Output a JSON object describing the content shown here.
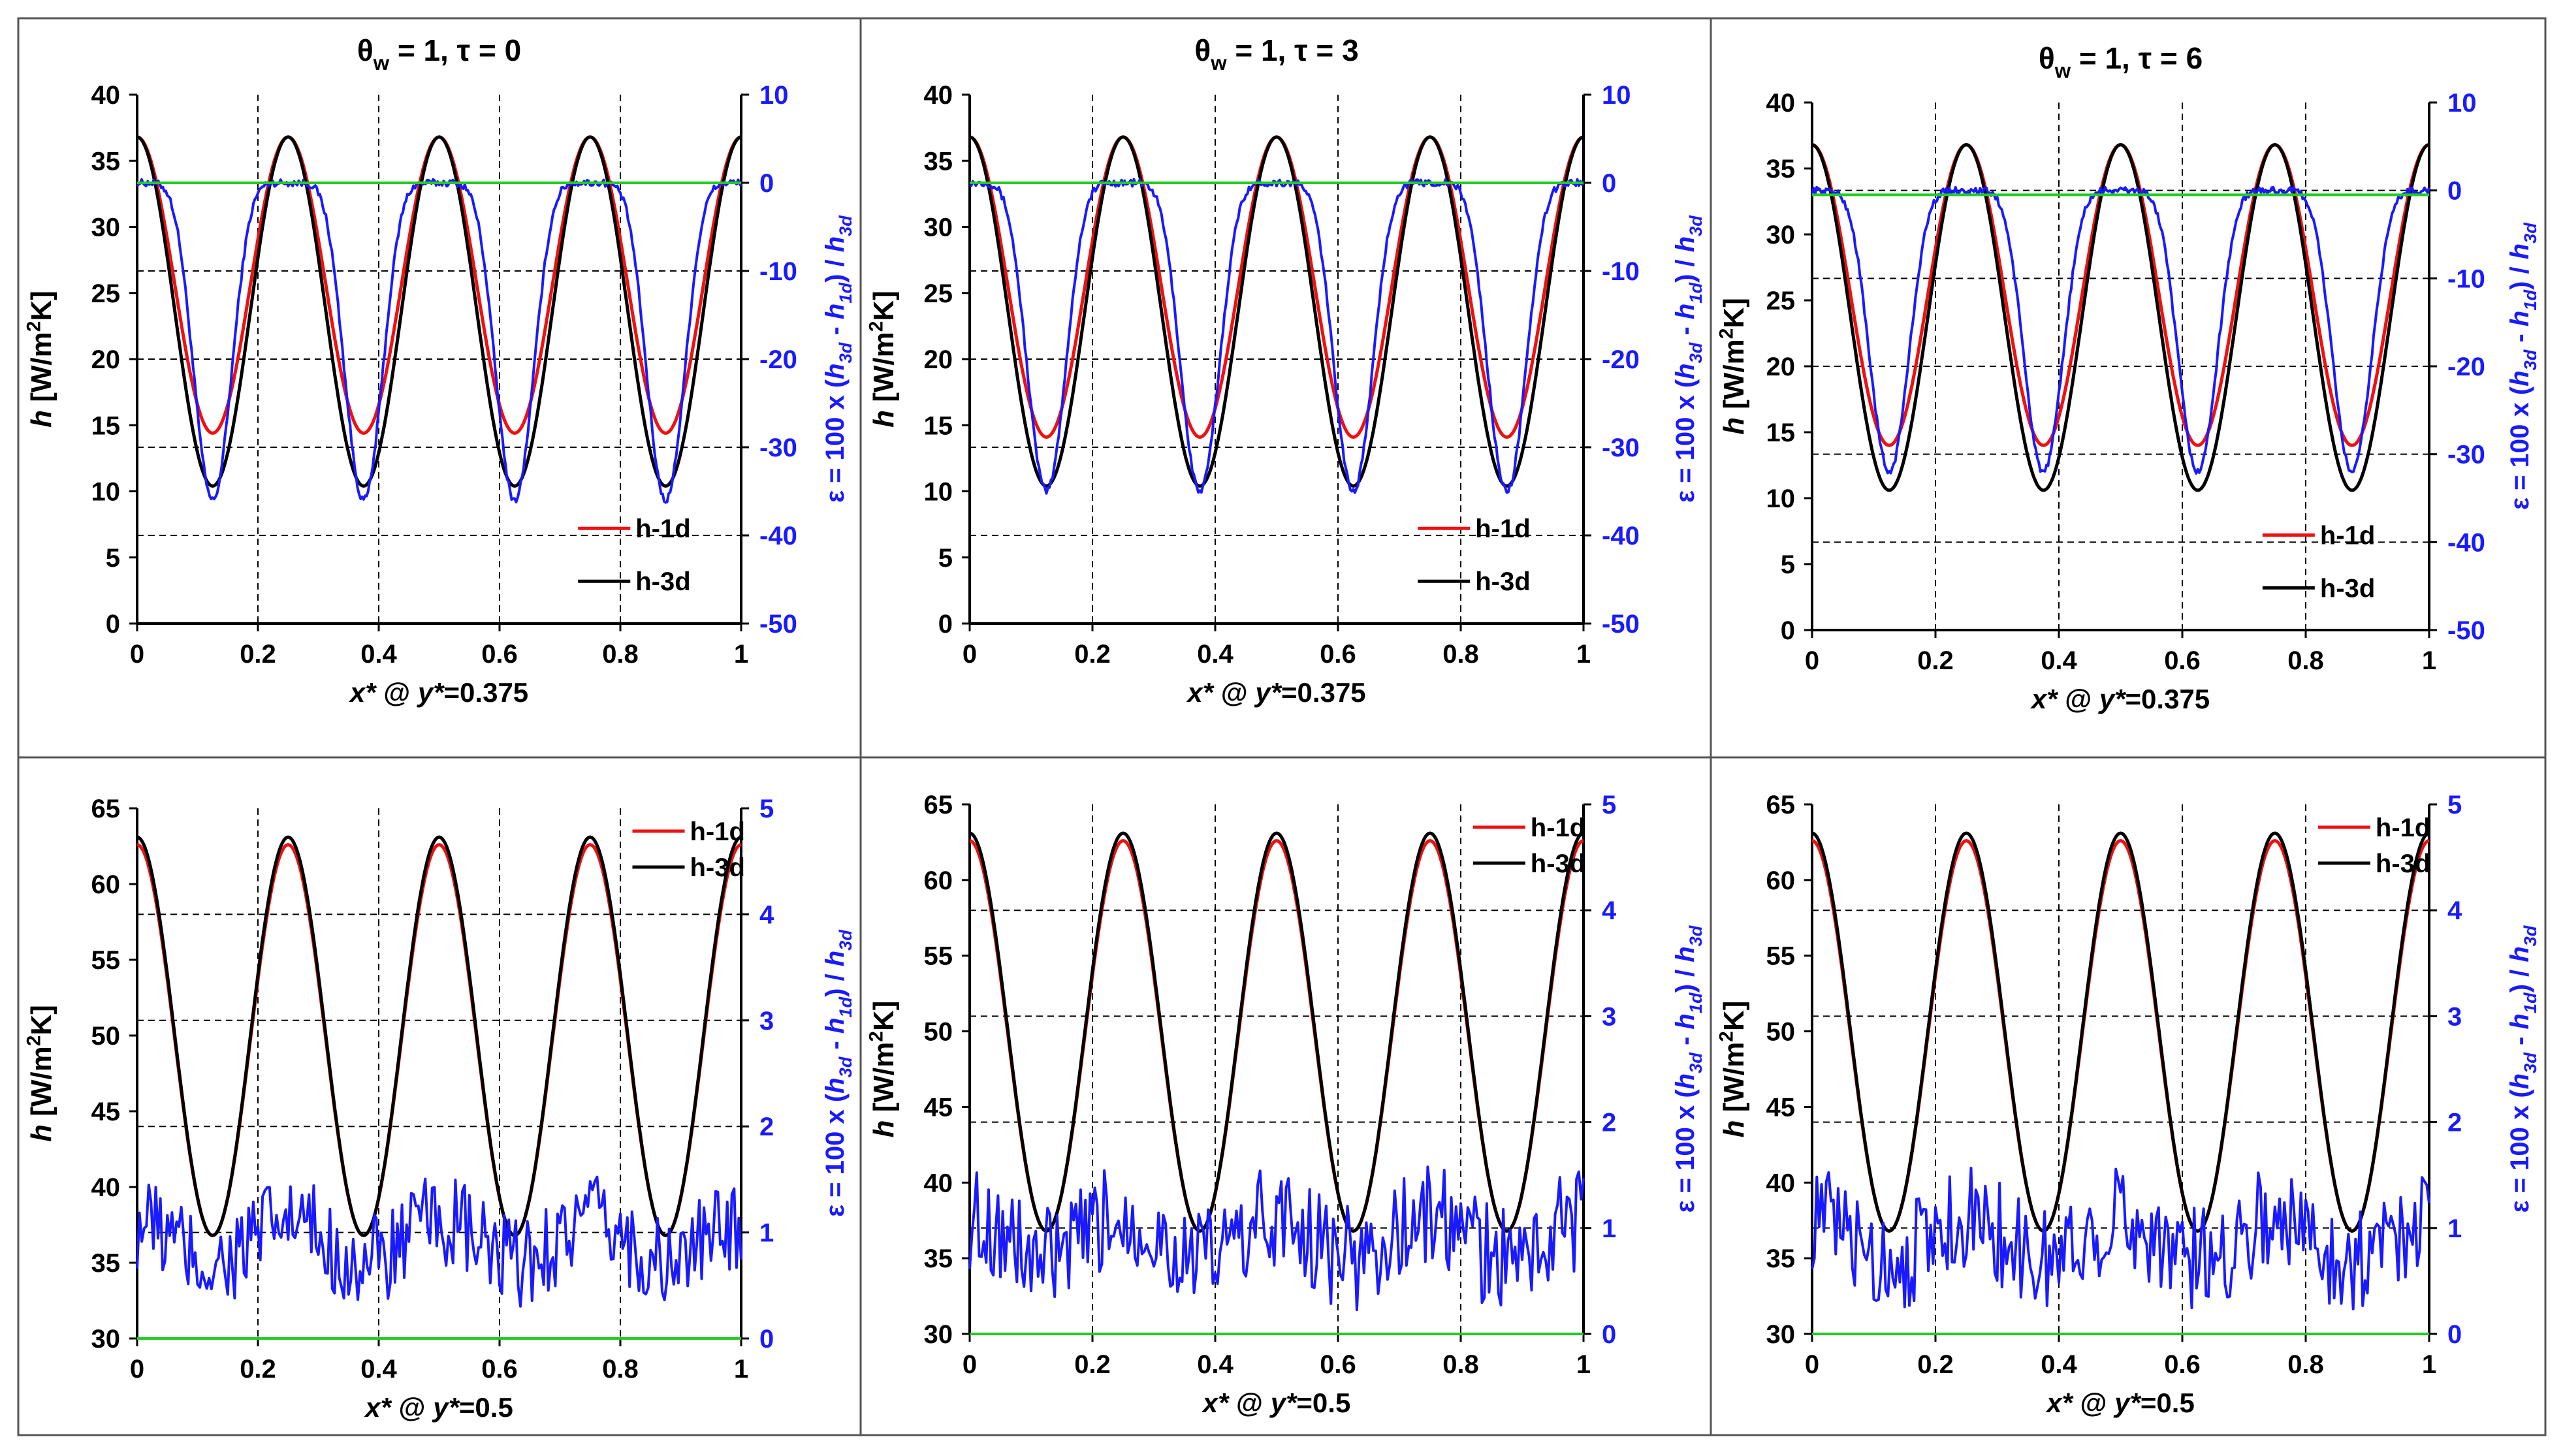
{
  "figure": {
    "line_colors": {
      "h1d": "#ee1111",
      "h3d": "#000000",
      "eps": "#1a1aff",
      "zero": "#22cc22"
    }
  },
  "chart_data": [
    {
      "type": "line",
      "title": "θw = 1, τ = 0",
      "xlabel": "x* @ y*=0.375",
      "ylabel": "h [W/m²K]",
      "y2label": "ε = 100 x (h3d - h1d) / h3d",
      "xlim": [
        0,
        1
      ],
      "ylim": [
        0,
        40
      ],
      "y2lim": [
        -50,
        10
      ],
      "xticks": [
        "0",
        "0.2",
        "0.4",
        "0.6",
        "0.8",
        "1"
      ],
      "yticks": [
        "0",
        "5",
        "10",
        "15",
        "20",
        "25",
        "30",
        "35",
        "40"
      ],
      "y2ticks": [
        "-50",
        "-40",
        "-30",
        "-20",
        "-10",
        "0",
        "10"
      ],
      "legend": [
        "h-1d",
        "h-3d"
      ],
      "legend_position": "lower-right",
      "series": [
        {
          "name": "h-1d",
          "axis": "left",
          "model": "cos",
          "max": 36.8,
          "min": 14.4
        },
        {
          "name": "h-3d",
          "axis": "left",
          "model": "cos",
          "max": 36.8,
          "min": 10.4
        },
        {
          "name": "ε",
          "axis": "right",
          "model": "error",
          "max": 0,
          "min": -36,
          "noise": 0.4
        },
        {
          "name": "zero",
          "axis": "right",
          "model": "const",
          "value": 0
        }
      ]
    },
    {
      "type": "line",
      "title": "θw = 1, τ = 3",
      "xlabel": "x* @ y*=0.375",
      "ylabel": "h [W/m²K]",
      "y2label": "ε = 100 x (h3d - h1d) / h3d",
      "xlim": [
        0,
        1
      ],
      "ylim": [
        0,
        40
      ],
      "y2lim": [
        -50,
        10
      ],
      "xticks": [
        "0",
        "0.2",
        "0.4",
        "0.6",
        "0.8",
        "1"
      ],
      "yticks": [
        "0",
        "5",
        "10",
        "15",
        "20",
        "25",
        "30",
        "35",
        "40"
      ],
      "y2ticks": [
        "-50",
        "-40",
        "-30",
        "-20",
        "-10",
        "0",
        "10"
      ],
      "legend": [
        "h-1d",
        "h-3d"
      ],
      "legend_position": "lower-right",
      "series": [
        {
          "name": "h-1d",
          "axis": "left",
          "model": "cos",
          "max": 36.8,
          "min": 14.1
        },
        {
          "name": "h-3d",
          "axis": "left",
          "model": "cos",
          "max": 36.8,
          "min": 10.4
        },
        {
          "name": "ε",
          "axis": "right",
          "model": "error",
          "max": 0,
          "min": -35,
          "noise": 0.4
        },
        {
          "name": "zero",
          "axis": "right",
          "model": "const",
          "value": 0
        }
      ]
    },
    {
      "type": "line",
      "title": "θw = 1, τ = 6",
      "xlabel": "x* @ y*=0.375",
      "ylabel": "h [W/m²K]",
      "y2label": "ε = 100 x (h3d - h1d) / h3d",
      "xlim": [
        0,
        1
      ],
      "ylim": [
        0,
        40
      ],
      "y2lim": [
        -50,
        10
      ],
      "xticks": [
        "0",
        "0.2",
        "0.4",
        "0.6",
        "0.8",
        "1"
      ],
      "yticks": [
        "0",
        "5",
        "10",
        "15",
        "20",
        "25",
        "30",
        "35",
        "40"
      ],
      "y2ticks": [
        "-50",
        "-40",
        "-30",
        "-20",
        "-10",
        "0",
        "10"
      ],
      "legend": [
        "h-1d",
        "h-3d"
      ],
      "legend_position": "lower-right",
      "series": [
        {
          "name": "h-1d",
          "axis": "left",
          "model": "cos",
          "max": 36.8,
          "min": 14.0
        },
        {
          "name": "h-3d",
          "axis": "left",
          "model": "cos",
          "max": 36.8,
          "min": 10.6
        },
        {
          "name": "ε",
          "axis": "right",
          "model": "error",
          "max": 0,
          "min": -32,
          "noise": 0.4
        },
        {
          "name": "zero",
          "axis": "right",
          "model": "const",
          "value": -0.5
        }
      ]
    },
    {
      "type": "line",
      "title": "",
      "xlabel": "x* @ y*=0.5",
      "ylabel": "h [W/m²K]",
      "y2label": "ε = 100 x (h3d - h1d) / h3d",
      "xlim": [
        0,
        1
      ],
      "ylim": [
        30,
        65
      ],
      "y2lim": [
        0,
        5
      ],
      "xticks": [
        "0",
        "0.2",
        "0.4",
        "0.6",
        "0.8",
        "1"
      ],
      "yticks": [
        "30",
        "35",
        "40",
        "45",
        "50",
        "55",
        "60",
        "65"
      ],
      "y2ticks": [
        "0",
        "1",
        "2",
        "3",
        "4",
        "5"
      ],
      "legend": [
        "h-1d",
        "h-3d"
      ],
      "legend_position": "top-right",
      "series": [
        {
          "name": "h-1d",
          "axis": "left",
          "model": "cos",
          "max": 62.6,
          "min": 36.8
        },
        {
          "name": "h-3d",
          "axis": "left",
          "model": "cos",
          "max": 63.1,
          "min": 36.8
        },
        {
          "name": "ε",
          "axis": "right",
          "model": "noise",
          "mean": 0.9,
          "amp": 0.45
        },
        {
          "name": "zero",
          "axis": "right",
          "model": "const",
          "value": 0
        }
      ]
    },
    {
      "type": "line",
      "title": "",
      "xlabel": "x* @ y*=0.5",
      "ylabel": "h [W/m²K]",
      "y2label": "ε = 100 x (h3d - h1d) / h3d",
      "xlim": [
        0,
        1
      ],
      "ylim": [
        30,
        65
      ],
      "y2lim": [
        0,
        5
      ],
      "xticks": [
        "0",
        "0.2",
        "0.4",
        "0.6",
        "0.8",
        "1"
      ],
      "yticks": [
        "30",
        "35",
        "40",
        "45",
        "50",
        "55",
        "60",
        "65"
      ],
      "y2ticks": [
        "0",
        "1",
        "2",
        "3",
        "4",
        "5"
      ],
      "legend": [
        "h-1d",
        "h-3d"
      ],
      "legend_position": "top-right",
      "series": [
        {
          "name": "h-1d",
          "axis": "left",
          "model": "cos",
          "max": 62.6,
          "min": 36.8
        },
        {
          "name": "h-3d",
          "axis": "left",
          "model": "cos",
          "max": 63.1,
          "min": 36.8
        },
        {
          "name": "ε",
          "axis": "right",
          "model": "noise",
          "mean": 0.9,
          "amp": 0.5
        },
        {
          "name": "zero",
          "axis": "right",
          "model": "const",
          "value": 0
        }
      ]
    },
    {
      "type": "line",
      "title": "",
      "xlabel": "x* @ y*=0.5",
      "ylabel": "h [W/m²K]",
      "y2label": "ε = 100 x (h3d - h1d) / h3d",
      "xlim": [
        0,
        1
      ],
      "ylim": [
        30,
        65
      ],
      "y2lim": [
        0,
        5
      ],
      "xticks": [
        "0",
        "0.2",
        "0.4",
        "0.6",
        "0.8",
        "1"
      ],
      "yticks": [
        "30",
        "35",
        "40",
        "45",
        "50",
        "55",
        "60",
        "65"
      ],
      "y2ticks": [
        "0",
        "1",
        "2",
        "3",
        "4",
        "5"
      ],
      "legend": [
        "h-1d",
        "h-3d"
      ],
      "legend_position": "top-right",
      "series": [
        {
          "name": "h-1d",
          "axis": "left",
          "model": "cos",
          "max": 62.6,
          "min": 36.8
        },
        {
          "name": "h-3d",
          "axis": "left",
          "model": "cos",
          "max": 63.1,
          "min": 36.8
        },
        {
          "name": "ε",
          "axis": "right",
          "model": "noise",
          "mean": 0.9,
          "amp": 0.5
        },
        {
          "name": "zero",
          "axis": "right",
          "model": "const",
          "value": 0
        }
      ]
    }
  ]
}
